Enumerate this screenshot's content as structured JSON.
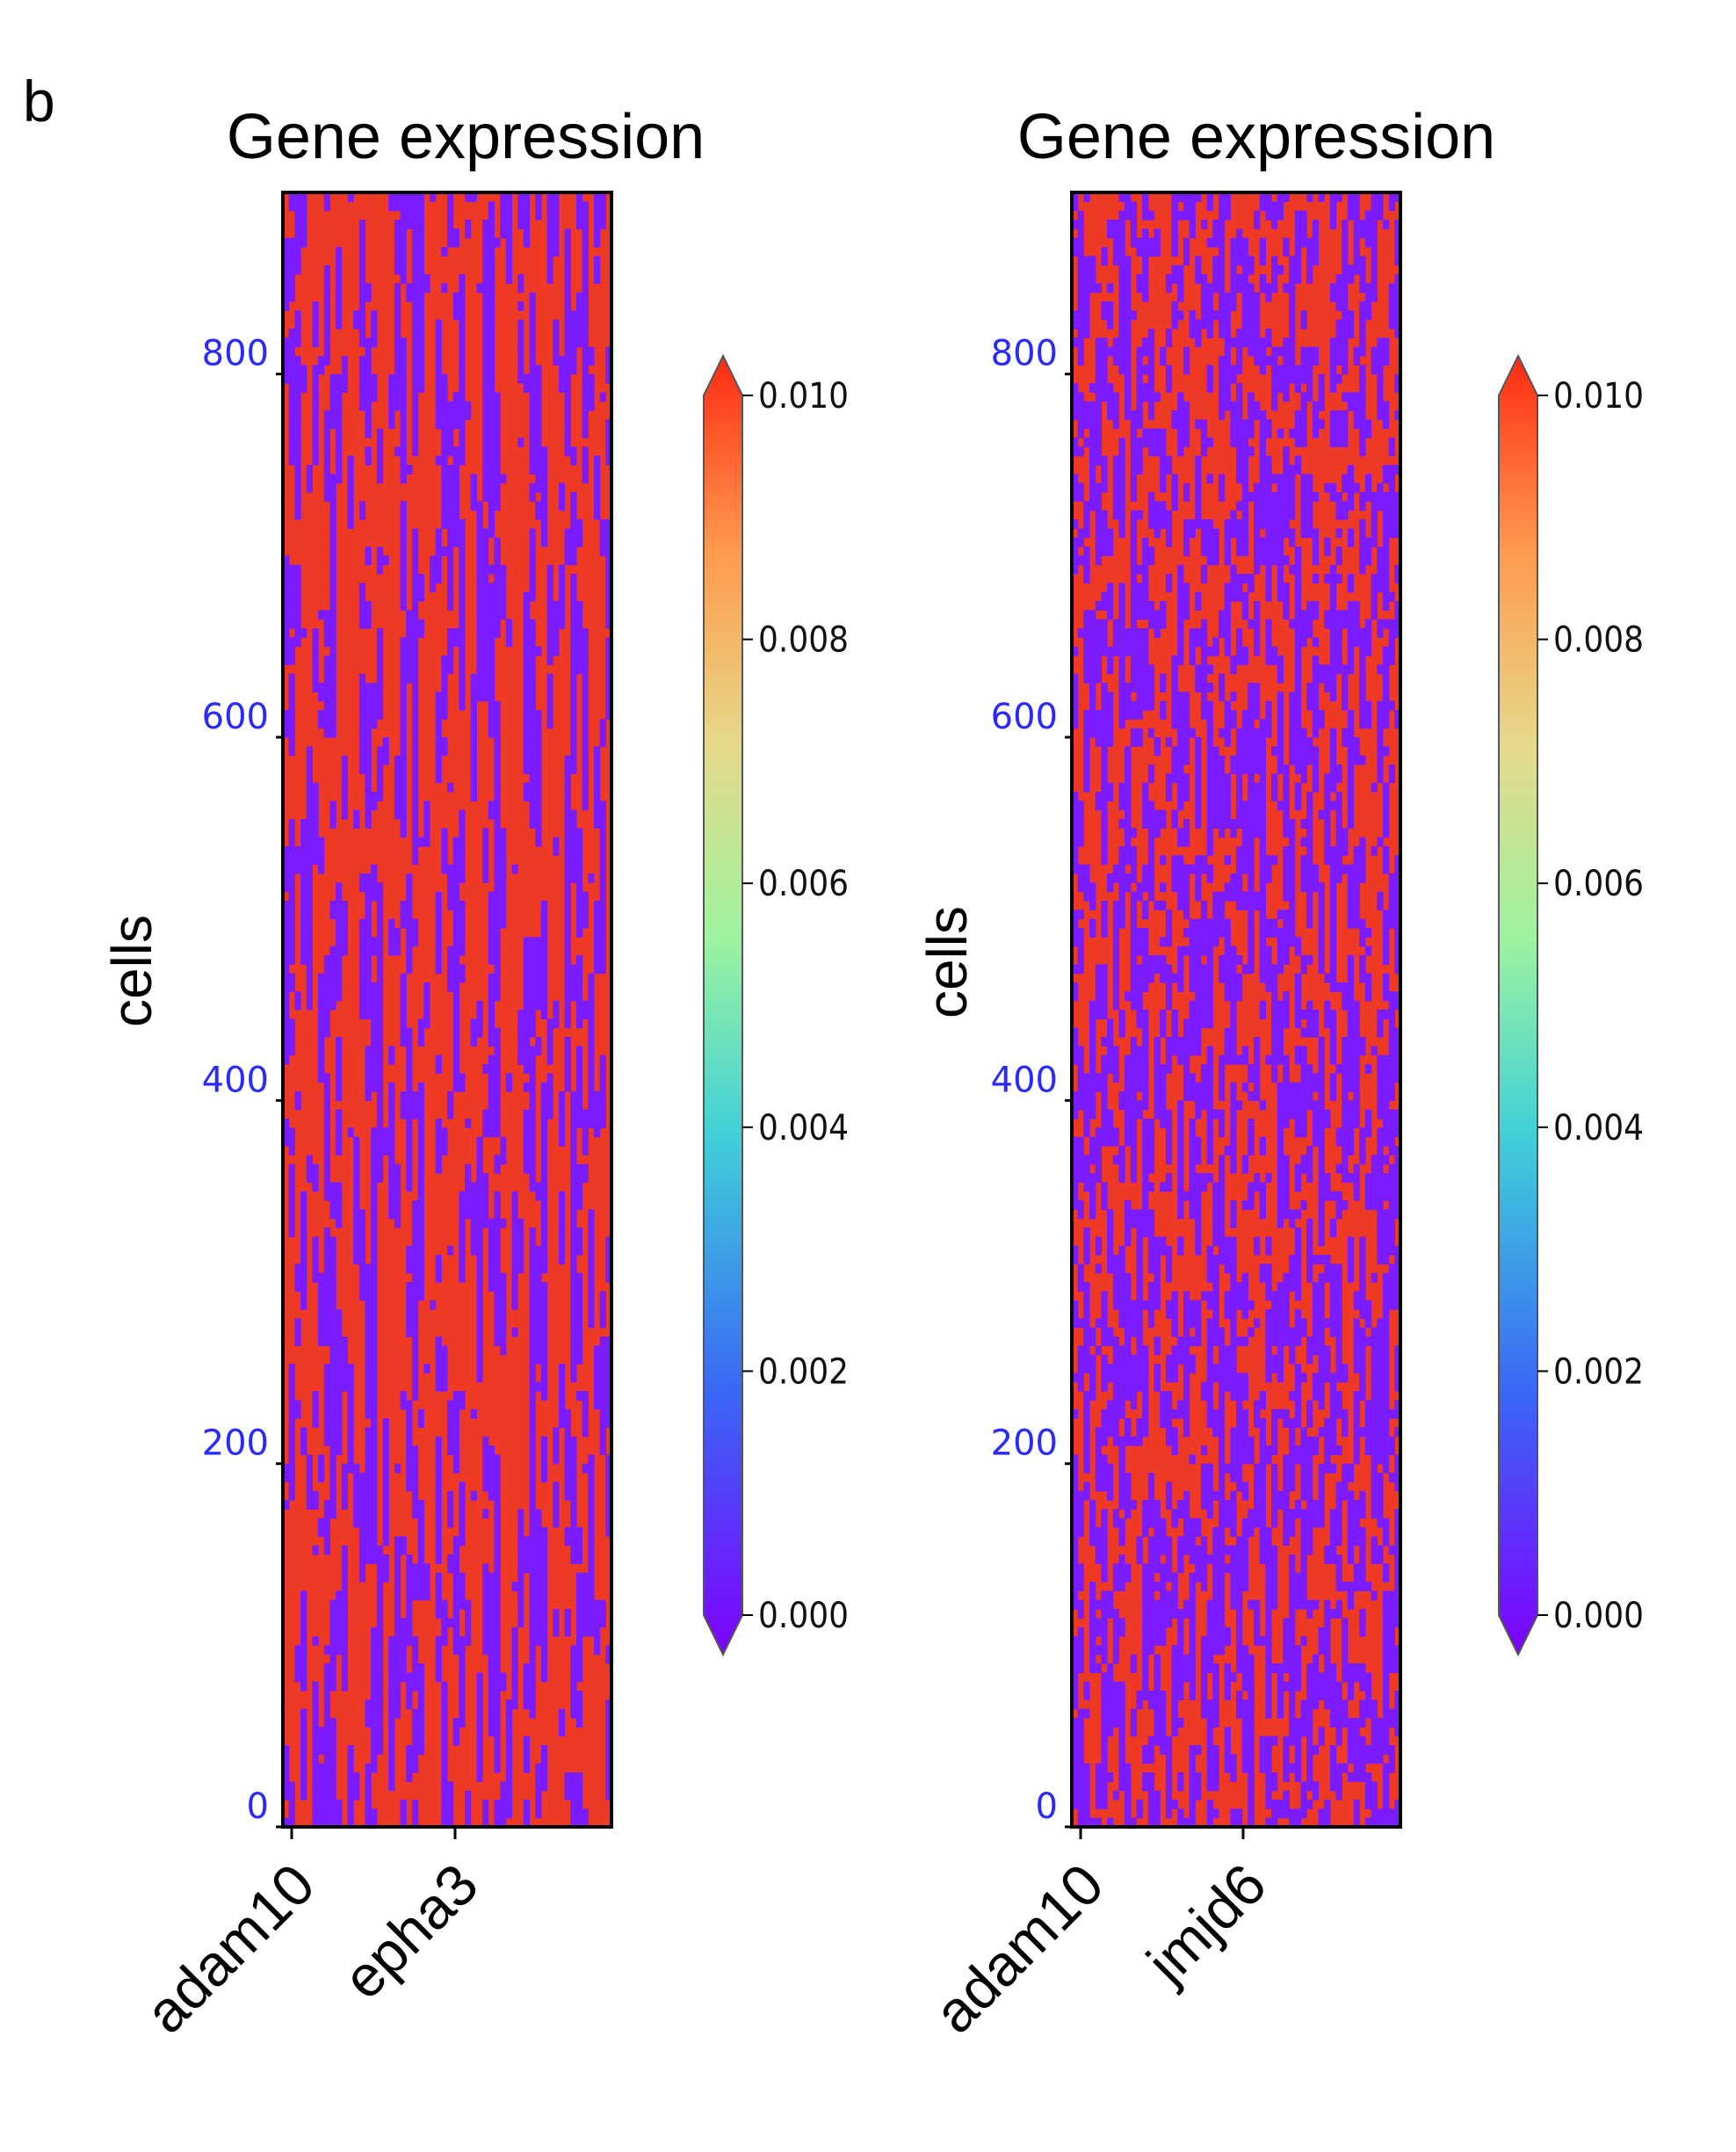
{
  "panel_label": "b",
  "colorbar": {
    "tick_labels": [
      "0.000",
      "0.002",
      "0.004",
      "0.006",
      "0.008",
      "0.010"
    ],
    "colormap": "rainbow",
    "extend": "both"
  },
  "chart_data": [
    {
      "type": "heatmap",
      "title": "Gene expression",
      "xlabel": "",
      "ylabel": "cells",
      "x_tick_labels": [
        "adam10",
        "epha3"
      ],
      "y_ticks": [
        0,
        200,
        400,
        600,
        800
      ],
      "y_tick_labels": [
        "0",
        "200",
        "400",
        "600",
        "800"
      ],
      "ylim": [
        0,
        900
      ],
      "vmin": 0.0,
      "vmax": 0.01,
      "low_color": "#7a1cff",
      "high_color": "#ee3a24",
      "note_values": "cells largely saturate at either 0.000 (purple) or >=0.010 (red)"
    },
    {
      "type": "heatmap",
      "title": "Gene expression",
      "xlabel": "",
      "ylabel": "cells",
      "x_tick_labels": [
        "adam10",
        "jmjd6"
      ],
      "y_ticks": [
        0,
        200,
        400,
        600,
        800
      ],
      "y_tick_labels": [
        "0",
        "200",
        "400",
        "600",
        "800"
      ],
      "ylim": [
        0,
        900
      ],
      "vmin": 0.0,
      "vmax": 0.01,
      "low_color": "#7a1cff",
      "high_color": "#ee3a24",
      "note_values": "cells largely saturate at either 0.000 (purple) or >=0.010 (red)"
    }
  ]
}
